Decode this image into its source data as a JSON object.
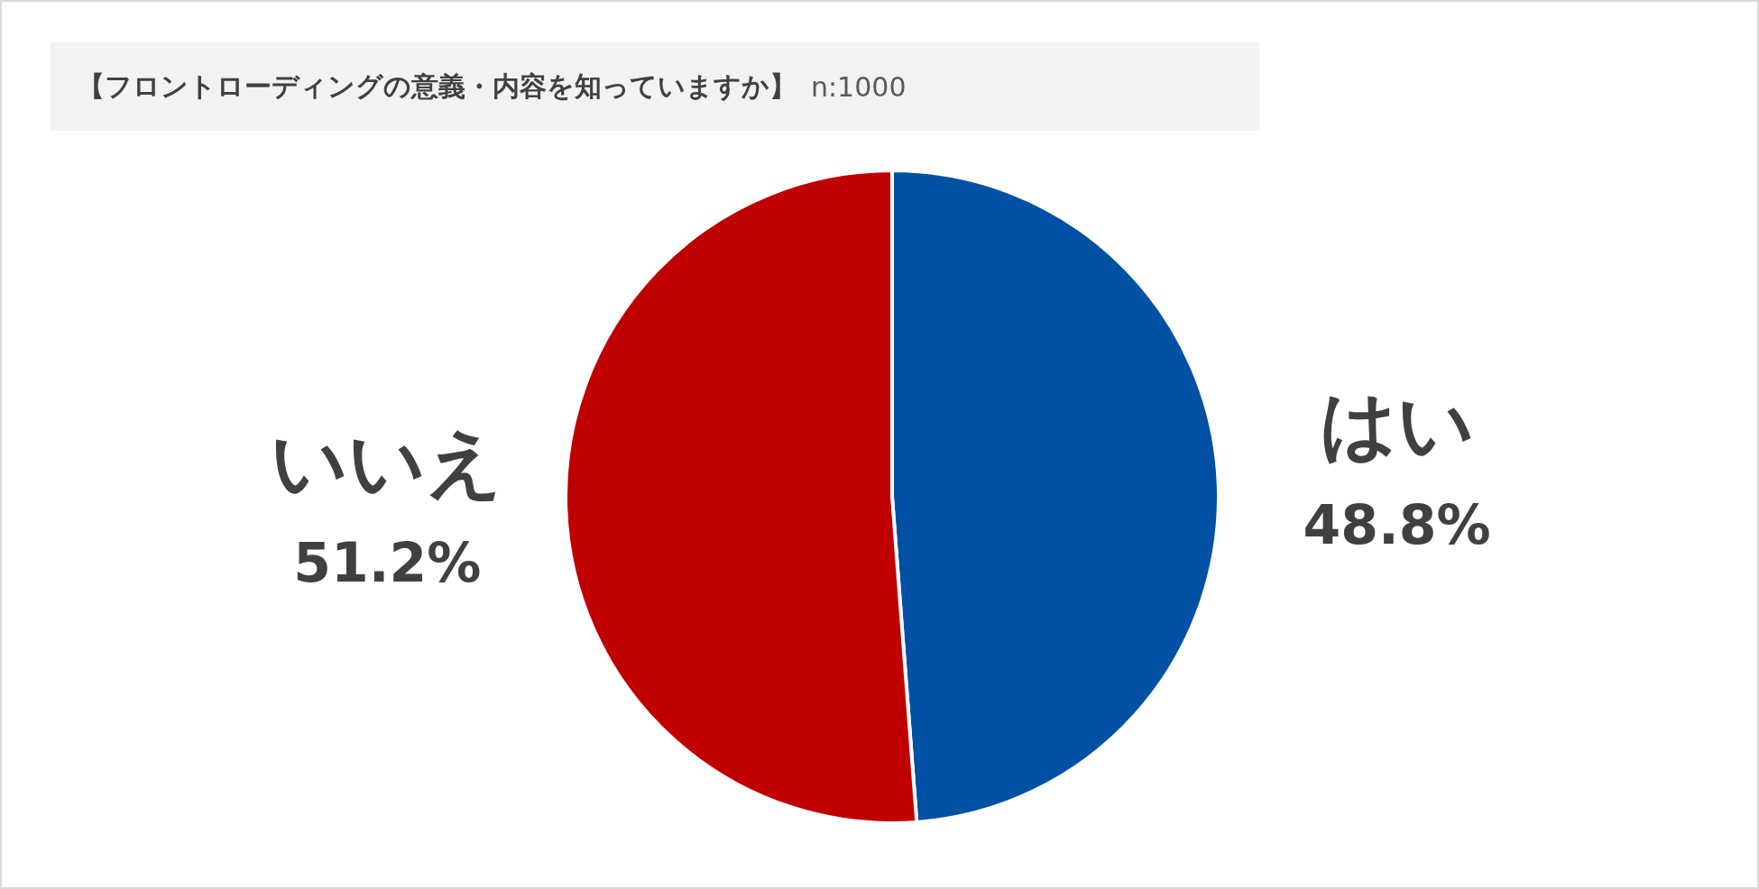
{
  "chart_data": {
    "type": "pie",
    "title": "【フロントローディングの意義・内容を知っていますか】",
    "subtitle": "n:1000",
    "categories": [
      "はい",
      "いいえ"
    ],
    "values": [
      48.8,
      51.2
    ],
    "colors": [
      "#0050a4",
      "#c00000"
    ],
    "value_labels": [
      "48.8%",
      "51.2%"
    ]
  }
}
